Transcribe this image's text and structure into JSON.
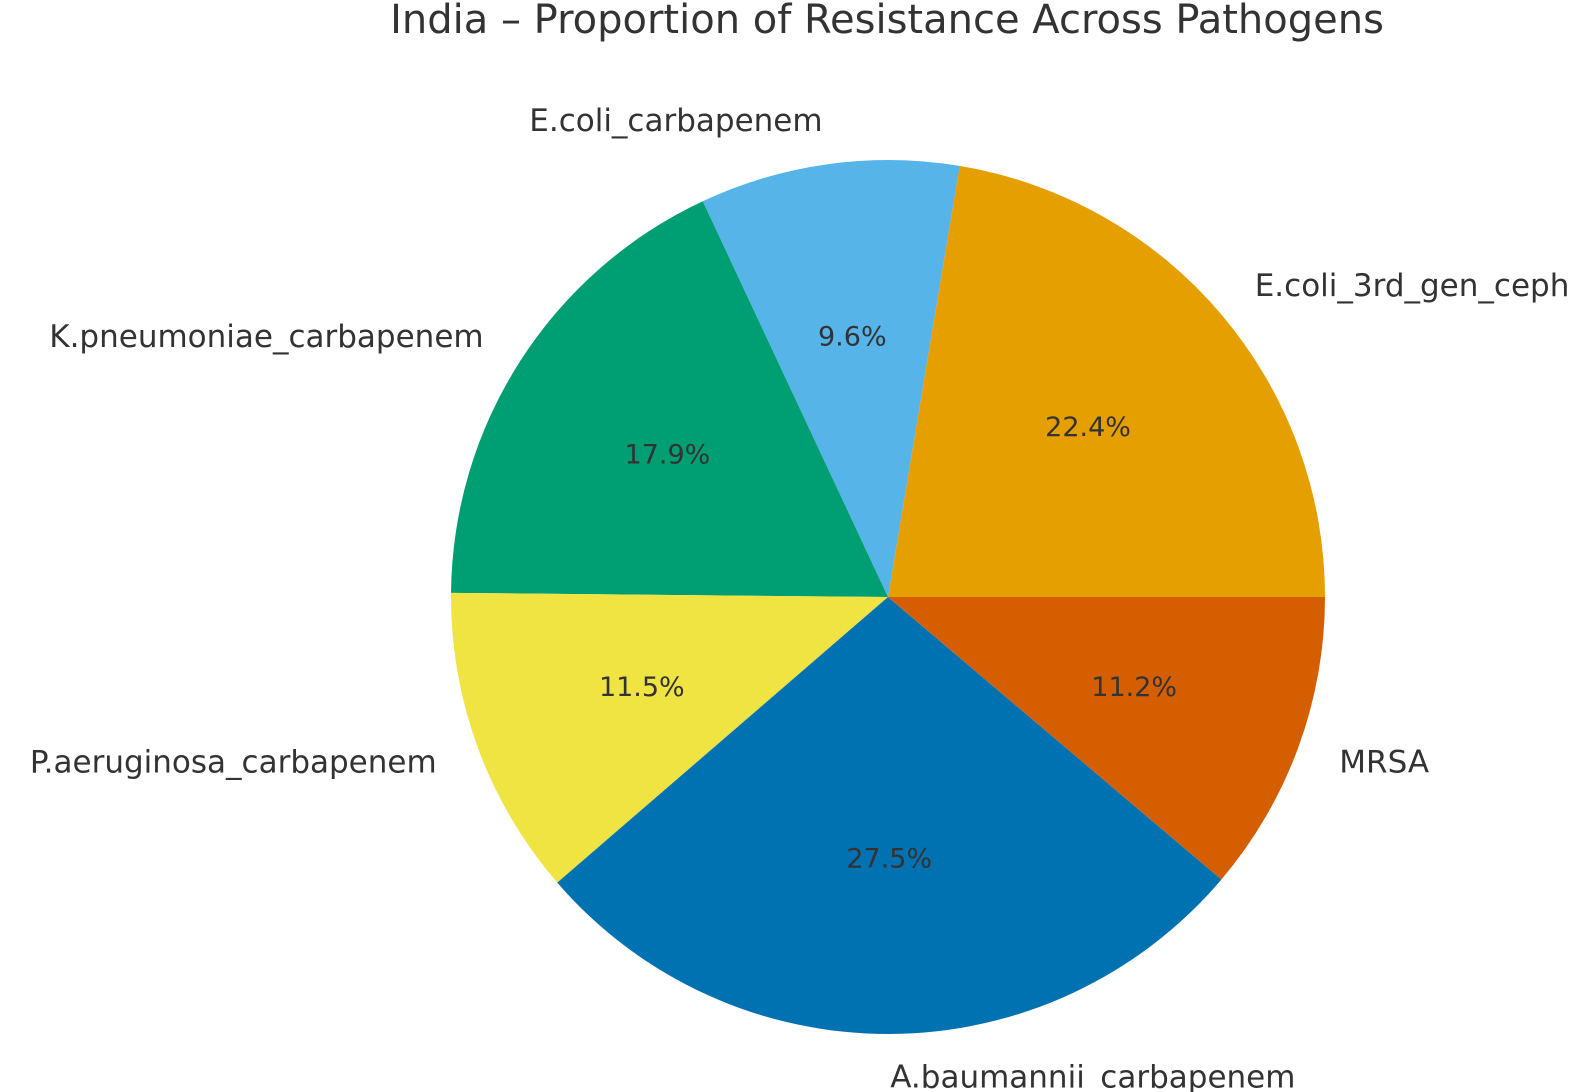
{
  "chart_data": {
    "type": "pie",
    "title": "India – Proportion of Resistance Across Pathogens",
    "start_angle_deg": 0,
    "direction": "counterclockwise",
    "slices": [
      {
        "label": "E.coli_3rd_gen_ceph",
        "value": 22.4,
        "pct_label": "22.4%",
        "color": "#E69F00"
      },
      {
        "label": "E.coli_carbapenem",
        "value": 9.6,
        "pct_label": "9.6%",
        "color": "#56B4E9"
      },
      {
        "label": "K.pneumoniae_carbapenem",
        "value": 17.9,
        "pct_label": "17.9%",
        "color": "#009E73"
      },
      {
        "label": "P.aeruginosa_carbapenem",
        "value": 11.5,
        "pct_label": "11.5%",
        "color": "#F0E442"
      },
      {
        "label": "A.baumannii_carbapenem",
        "value": 27.5,
        "pct_label": "27.5%",
        "color": "#0072B2"
      },
      {
        "label": "MRSA",
        "value": 11.2,
        "pct_label": "11.2%",
        "color": "#D55E00"
      }
    ]
  }
}
